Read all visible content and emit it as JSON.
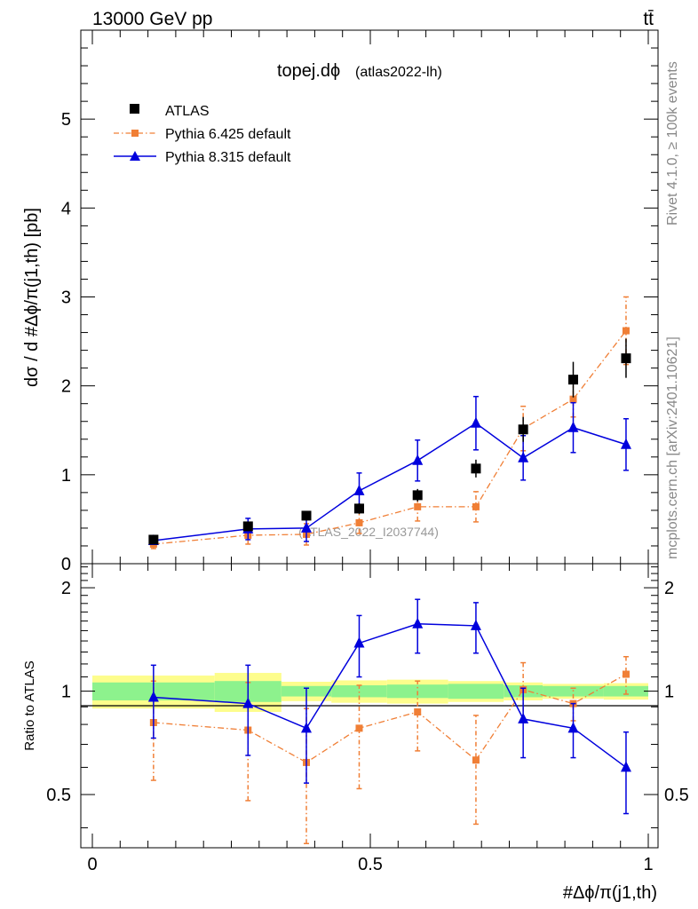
{
  "header": {
    "energy_label": "13000 GeV pp",
    "process_label": "tt̄"
  },
  "side_labels": {
    "rivet": "Rivet 4.1.0, ≥ 100k events",
    "mcplots": "mcplots.cern.ch [arXiv:2401.10621]"
  },
  "chart_data": {
    "type": "scatter",
    "title_main": "topej.dϕ",
    "title_sub": "(atlas2022-lh)",
    "watermark": "(ATLAS_2022_I2037744)",
    "ylabel_main": "dσ / d #Δϕ/π(j1,th) [pb]",
    "ylabel_ratio": "Ratio to ATLAS",
    "xlabel": "#Δϕ/π(j1,th)",
    "xlim": [
      0,
      1
    ],
    "ylim_main": [
      0,
      6
    ],
    "ylim_ratio": [
      0.35,
      2.35
    ],
    "x_tick_labels": [
      "0",
      "0.5",
      "1"
    ],
    "y_tick_labels_main": [
      "0",
      "1",
      "2",
      "3",
      "4",
      "5"
    ],
    "y_tick_labels_ratio": [
      "0.5",
      "1",
      "2"
    ],
    "legend": [
      {
        "name": "ATLAS",
        "marker": "square",
        "color": "#000000"
      },
      {
        "name": "Pythia 6.425 default",
        "marker": "small-square",
        "color": "#f07f36",
        "dash": "dashdot"
      },
      {
        "name": "Pythia 8.315 default",
        "marker": "triangle",
        "color": "#0000dd"
      }
    ],
    "bin_edges": [
      0,
      0.22,
      0.34,
      0.43,
      0.53,
      0.64,
      0.74,
      0.81,
      0.92,
      1.0
    ],
    "x": [
      0.11,
      0.28,
      0.385,
      0.48,
      0.585,
      0.69,
      0.775,
      0.865,
      0.96
    ],
    "atlas": {
      "y": [
        0.27,
        0.42,
        0.54,
        0.62,
        0.77,
        1.07,
        1.51,
        2.07,
        2.31
      ],
      "err": [
        0.03,
        0.04,
        0.05,
        0.06,
        0.07,
        0.1,
        0.14,
        0.2,
        0.22
      ],
      "band_inner": [
        0.06,
        0.07,
        0.035,
        0.04,
        0.045,
        0.05,
        0.04,
        0.035,
        0.035
      ],
      "band_outer": [
        0.11,
        0.13,
        0.065,
        0.075,
        0.08,
        0.07,
        0.06,
        0.05,
        0.055
      ]
    },
    "series": [
      {
        "name": "Pythia 6.425 default",
        "color": "#f07f36",
        "y": [
          0.22,
          0.32,
          0.33,
          0.46,
          0.64,
          0.64,
          1.52,
          1.85,
          2.62
        ],
        "err": [
          0.05,
          0.1,
          0.12,
          0.12,
          0.16,
          0.17,
          0.25,
          0.2,
          0.38
        ],
        "ratio": [
          0.81,
          0.77,
          0.62,
          0.78,
          0.87,
          0.63,
          1.01,
          0.92,
          1.12
        ],
        "ratio_err": [
          0.26,
          0.29,
          0.27,
          0.26,
          0.2,
          0.22,
          0.2,
          0.1,
          0.14
        ]
      },
      {
        "name": "Pythia 8.315 default",
        "color": "#0000dd",
        "y": [
          0.26,
          0.39,
          0.4,
          0.82,
          1.16,
          1.58,
          1.19,
          1.53,
          1.34
        ],
        "err": [
          0.04,
          0.12,
          0.15,
          0.2,
          0.23,
          0.3,
          0.25,
          0.28,
          0.29
        ],
        "ratio": [
          0.96,
          0.92,
          0.78,
          1.38,
          1.57,
          1.55,
          0.83,
          0.78,
          0.6
        ],
        "ratio_err": [
          0.23,
          0.27,
          0.24,
          0.28,
          0.28,
          0.26,
          0.19,
          0.14,
          0.16
        ]
      }
    ]
  }
}
